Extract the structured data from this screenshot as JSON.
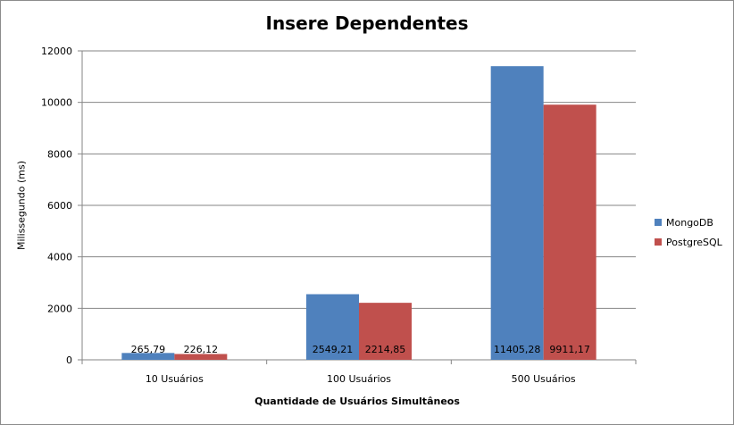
{
  "chart_data": {
    "type": "bar",
    "title": "Insere Dependentes",
    "xlabel": "Quantidade de Usuários Simultâneos",
    "ylabel": "Milissegundo (ms)",
    "categories": [
      "10 Usuários",
      "100 Usuários",
      "500 Usuários"
    ],
    "series": [
      {
        "name": "MongoDB",
        "color": "#4f81bd",
        "values": [
          265.79,
          2549.21,
          11405.28
        ],
        "labels": [
          "265,79",
          "2549,21",
          "11405,28"
        ]
      },
      {
        "name": "PostgreSQL",
        "color": "#c0504d",
        "values": [
          226.12,
          2214.85,
          9911.17
        ],
        "labels": [
          "226,12",
          "2214,85",
          "9911,17"
        ]
      }
    ],
    "ylim": [
      0,
      12000
    ],
    "yticks": [
      0,
      2000,
      4000,
      6000,
      8000,
      10000,
      12000
    ],
    "grid": true,
    "legend": "right"
  }
}
